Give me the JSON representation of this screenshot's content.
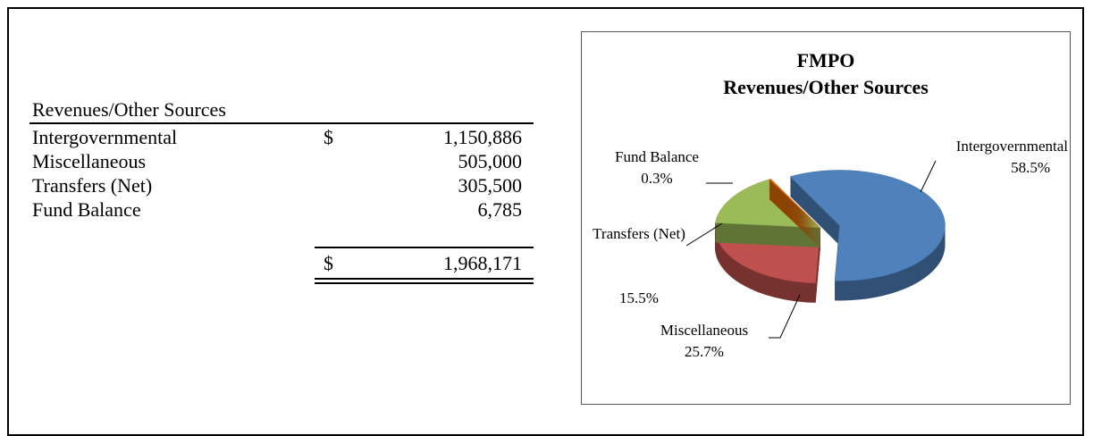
{
  "table": {
    "header": "Revenues/Other Sources",
    "rows": [
      {
        "label": "Intergovernmental",
        "currency": "$",
        "amount": "1,150,886"
      },
      {
        "label": "Miscellaneous",
        "amount": "505,000"
      },
      {
        "label": "Transfers (Net)",
        "amount": "305,500"
      },
      {
        "label": "Fund Balance",
        "amount": "6,785"
      }
    ],
    "total": {
      "currency": "$",
      "amount": "1,968,171"
    }
  },
  "chart_data": {
    "type": "pie",
    "title": [
      "FMPO",
      "Revenues/Other Sources"
    ],
    "categories": [
      "Intergovernmental",
      "Miscellaneous",
      "Transfers (Net)",
      "Fund Balance"
    ],
    "values": [
      58.5,
      25.7,
      15.5,
      0.3
    ],
    "value_labels": [
      "58.5%",
      "25.7%",
      "15.5%",
      "0.3%"
    ],
    "colors": [
      "#4f81bd",
      "#c0504d",
      "#9bbb59",
      "#e46c0a"
    ],
    "explode": [
      true,
      false,
      false,
      false
    ]
  }
}
